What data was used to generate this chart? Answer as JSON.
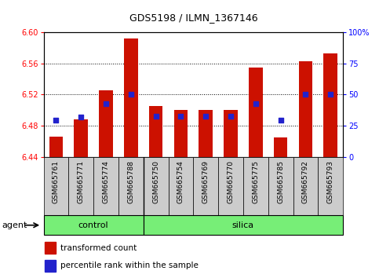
{
  "title": "GDS5198 / ILMN_1367146",
  "samples": [
    "GSM665761",
    "GSM665771",
    "GSM665774",
    "GSM665788",
    "GSM665750",
    "GSM665754",
    "GSM665769",
    "GSM665770",
    "GSM665775",
    "GSM665785",
    "GSM665792",
    "GSM665793"
  ],
  "groups": [
    "control",
    "control",
    "control",
    "control",
    "silica",
    "silica",
    "silica",
    "silica",
    "silica",
    "silica",
    "silica",
    "silica"
  ],
  "red_values": [
    6.466,
    6.488,
    6.525,
    6.592,
    6.505,
    6.5,
    6.5,
    6.5,
    6.555,
    6.465,
    6.563,
    6.573
  ],
  "blue_values": [
    6.487,
    6.491,
    6.508,
    6.52,
    6.492,
    6.492,
    6.492,
    6.492,
    6.508,
    6.487,
    6.52,
    6.52
  ],
  "ymin": 6.44,
  "ymax": 6.6,
  "y_ticks_left": [
    6.44,
    6.48,
    6.52,
    6.56,
    6.6
  ],
  "y_ticks_right": [
    0,
    25,
    50,
    75,
    100
  ],
  "right_ytick_labels": [
    "0",
    "25",
    "50",
    "75",
    "100%"
  ],
  "bar_color": "#CC1100",
  "dot_color": "#2222CC",
  "control_color": "#77EE77",
  "silica_color": "#77EE77",
  "bg_color": "#CCCCCC",
  "agent_label": "agent",
  "legend_red": "transformed count",
  "legend_blue": "percentile rank within the sample",
  "bar_width": 0.55,
  "dot_size": 20,
  "n_control": 4,
  "n_silica": 8
}
